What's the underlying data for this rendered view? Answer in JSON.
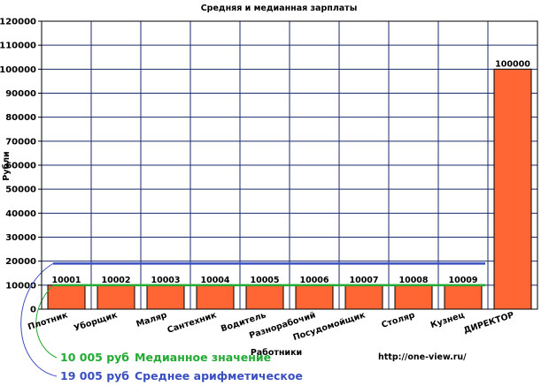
{
  "chart_data": {
    "type": "bar",
    "title": "Средняя и медианная зарплаты",
    "xlabel": "Работники",
    "ylabel": "Рубли",
    "ylim": [
      0,
      120000
    ],
    "ytick_step": 10000,
    "grid": true,
    "categories": [
      "Плотник",
      "Уборщик",
      "Маляр",
      "Сантехник",
      "Водитель",
      "Разнорабочий",
      "Посудомойщик",
      "Столяр",
      "Кузнец",
      "ДИРЕКТОР"
    ],
    "values": [
      10001,
      10002,
      10003,
      10004,
      10005,
      10006,
      10007,
      10008,
      10009,
      100000
    ],
    "bar_color": "#ff6633",
    "reference_lines": [
      {
        "value": 10005,
        "color": "#22aa33",
        "value_label": "10 005 руб",
        "label": "Медианное значение"
      },
      {
        "value": 19005,
        "color": "#3a4fc0",
        "value_label": "19 005 руб",
        "label": "Среднее арифметическое"
      }
    ],
    "source": "http://one-view.ru/"
  }
}
